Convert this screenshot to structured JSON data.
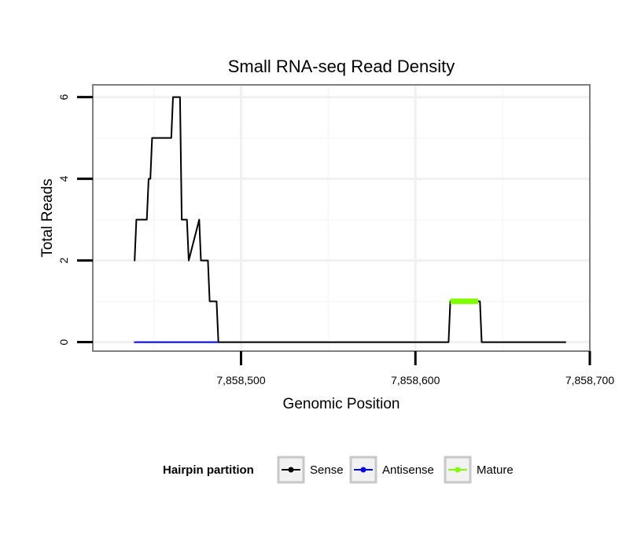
{
  "chart_data": {
    "type": "line",
    "title": "Small RNA-seq Read Density",
    "xlabel": "Genomic Position",
    "ylabel": "Total Reads",
    "xlim": [
      7858415,
      7858700
    ],
    "ylim": [
      -0.22,
      6.3
    ],
    "x_ticks": [
      7858500,
      7858600,
      7858700
    ],
    "x_tick_labels": [
      "7,858,500",
      "7,858,600",
      "7,858,700"
    ],
    "y_ticks": [
      0,
      2,
      4,
      6
    ],
    "y_tick_labels": [
      "0",
      "2",
      "4",
      "6"
    ],
    "grid": true,
    "legend": {
      "title": "Hairpin partition",
      "position": "bottom"
    },
    "series": [
      {
        "name": "Sense",
        "color": "#000000",
        "x": [
          7858439,
          7858440,
          7858446,
          7858447,
          7858448,
          7858449,
          7858460,
          7858461,
          7858465,
          7858466,
          7858469,
          7858470,
          7858476,
          7858477,
          7858481,
          7858482,
          7858486,
          7858487,
          7858619,
          7858620,
          7858637,
          7858638,
          7858686
        ],
        "values": [
          2,
          3,
          3,
          4,
          4,
          5,
          5,
          6,
          6,
          3,
          3,
          2,
          3,
          2,
          2,
          1,
          1,
          0,
          0,
          1,
          1,
          0,
          0
        ]
      },
      {
        "name": "Antisense",
        "color": "#0000ff",
        "x": [
          7858439,
          7858487
        ],
        "values": [
          0,
          0
        ]
      },
      {
        "name": "Mature",
        "color": "#7fff00",
        "x": [
          7858620,
          7858636
        ],
        "values": [
          1,
          1
        ]
      }
    ]
  }
}
